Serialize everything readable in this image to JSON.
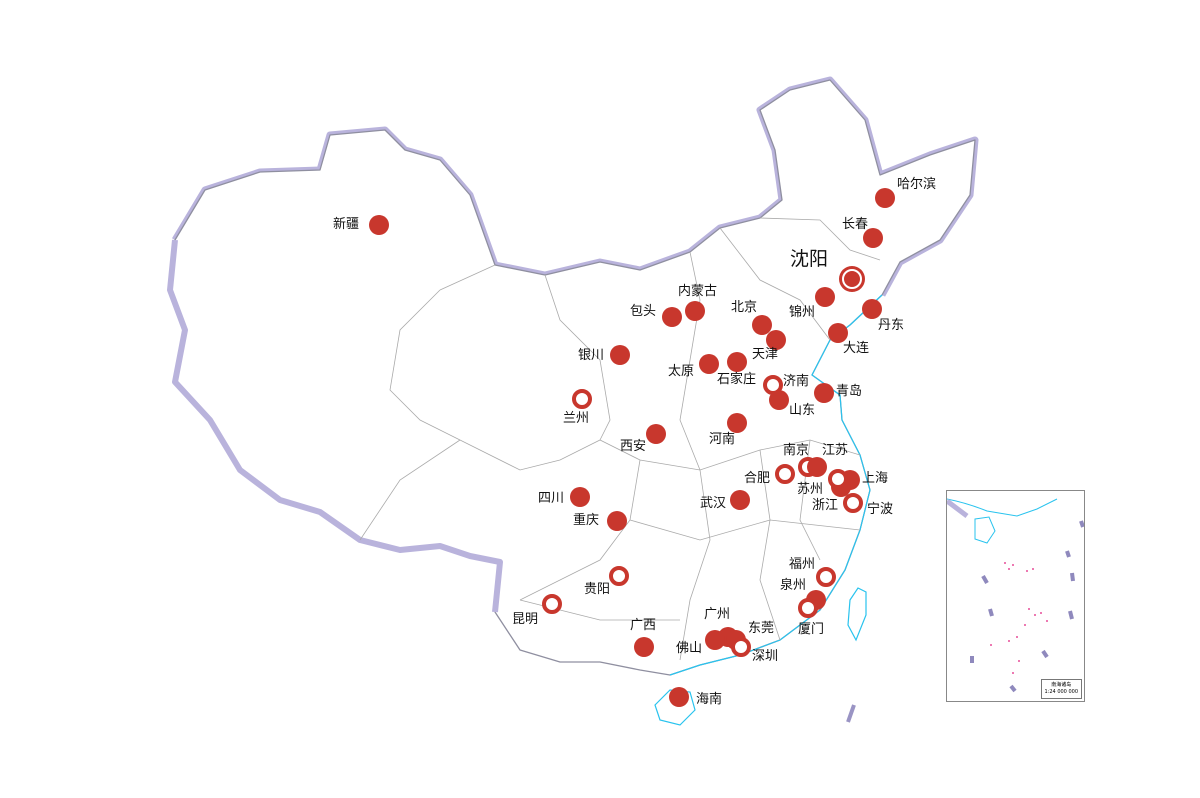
{
  "colors": {
    "marker": "#c8372d",
    "border_shadow": "#b9b3dc",
    "province_line": "#aaaaaa",
    "coast": "#29c3ee",
    "island": "#e84f9a"
  },
  "cities": [
    {
      "name": "新疆",
      "style": "filled"
    },
    {
      "name": "哈尔滨",
      "style": "filled"
    },
    {
      "name": "长春",
      "style": "filled"
    },
    {
      "name": "沈阳",
      "style": "highlight"
    },
    {
      "name": "锦州",
      "style": "filled"
    },
    {
      "name": "丹东",
      "style": "filled"
    },
    {
      "name": "大连",
      "style": "filled"
    },
    {
      "name": "内蒙古",
      "style": "filled"
    },
    {
      "name": "包头",
      "style": "filled"
    },
    {
      "name": "北京",
      "style": "filled"
    },
    {
      "name": "天津",
      "style": "filled"
    },
    {
      "name": "银川",
      "style": "filled"
    },
    {
      "name": "太原",
      "style": "filled"
    },
    {
      "name": "石家庄",
      "style": "filled"
    },
    {
      "name": "济南",
      "style": "hollow"
    },
    {
      "name": "青岛",
      "style": "filled"
    },
    {
      "name": "山东",
      "style": "filled"
    },
    {
      "name": "兰州",
      "style": "hollow"
    },
    {
      "name": "西安",
      "style": "filled"
    },
    {
      "name": "河南",
      "style": "filled"
    },
    {
      "name": "南京",
      "style": "hollow"
    },
    {
      "name": "江苏",
      "style": "filled"
    },
    {
      "name": "合肥",
      "style": "hollow"
    },
    {
      "name": "上海",
      "style": "filled"
    },
    {
      "name": "苏州",
      "style": "filled"
    },
    {
      "name": "浙江",
      "style": "hollow"
    },
    {
      "name": "宁波",
      "style": "hollow"
    },
    {
      "name": "四川",
      "style": "filled"
    },
    {
      "name": "重庆",
      "style": "filled"
    },
    {
      "name": "武汉",
      "style": "filled"
    },
    {
      "name": "福州",
      "style": "hollow"
    },
    {
      "name": "泉州",
      "style": "filled"
    },
    {
      "name": "厦门",
      "style": "hollow"
    },
    {
      "name": "贵阳",
      "style": "hollow"
    },
    {
      "name": "昆明",
      "style": "hollow"
    },
    {
      "name": "广西",
      "style": "filled"
    },
    {
      "name": "广州",
      "style": "filled"
    },
    {
      "name": "佛山",
      "style": "filled"
    },
    {
      "name": "东莞",
      "style": "filled"
    },
    {
      "name": "深圳",
      "style": "hollow"
    },
    {
      "name": "海南",
      "style": "filled"
    }
  ],
  "inset": {
    "title": "南海诸岛",
    "scale": "1:24 000 000"
  }
}
